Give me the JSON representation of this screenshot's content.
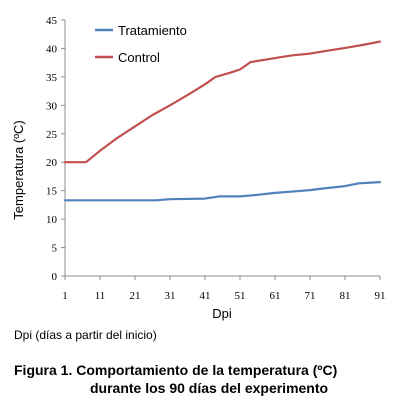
{
  "chart_data": {
    "type": "line",
    "title": "",
    "xlabel": "Dpi",
    "ylabel": "Temperatura (ºC)",
    "x_ticks": [
      1,
      11,
      21,
      31,
      41,
      51,
      61,
      71,
      81,
      91
    ],
    "y_ticks": [
      0,
      5,
      10,
      15,
      20,
      25,
      30,
      35,
      40,
      45
    ],
    "xlim": [
      1,
      91
    ],
    "ylim": [
      0,
      45
    ],
    "grid": false,
    "legend_position": "top-left",
    "series": [
      {
        "name": "Tratamiento",
        "color": "#4f81bd",
        "x": [
          1,
          11,
          21,
          27,
          31,
          41,
          45,
          51,
          55,
          61,
          65,
          71,
          75,
          81,
          85,
          91
        ],
        "y": [
          13.3,
          13.3,
          13.3,
          13.3,
          13.5,
          13.6,
          14.0,
          14.0,
          14.2,
          14.6,
          14.8,
          15.1,
          15.4,
          15.8,
          16.3,
          16.5
        ]
      },
      {
        "name": "Control",
        "color": "#c0504d",
        "x": [
          1,
          7,
          11,
          16,
          21,
          26,
          31,
          36,
          41,
          44,
          48,
          51,
          54,
          58,
          61,
          66,
          71,
          76,
          81,
          86,
          91
        ],
        "y": [
          20.0,
          20.0,
          22.0,
          24.3,
          26.3,
          28.3,
          30.0,
          31.8,
          33.7,
          35.0,
          35.7,
          36.3,
          37.6,
          38.0,
          38.3,
          38.8,
          39.1,
          39.6,
          40.1,
          40.6,
          41.2
        ]
      }
    ]
  },
  "note": "Dpi (días a partir del inicio)",
  "caption": {
    "line1": "Figura 1.  Comportamiento de la temperatura (ºC)",
    "line2": "durante los 90 días del experimento"
  }
}
